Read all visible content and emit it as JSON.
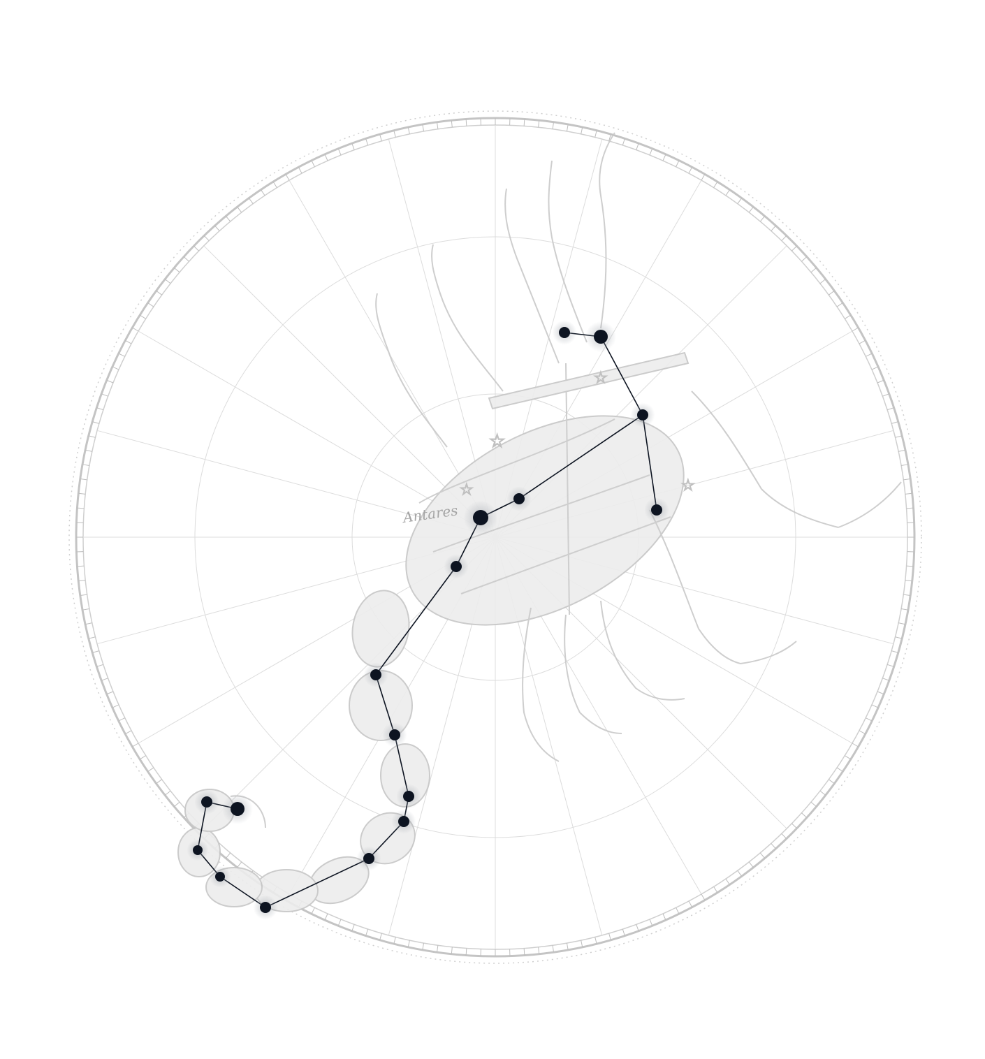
{
  "figure": {
    "illustration_label": "Antares"
  },
  "stars": [
    {
      "id": "claw-a",
      "mag": 2
    },
    {
      "id": "claw-b",
      "mag": 1
    },
    {
      "id": "shoulder",
      "mag": 2
    },
    {
      "id": "right-arm",
      "mag": 2
    },
    {
      "id": "sigma",
      "mag": 2
    },
    {
      "id": "antares",
      "mag": 0
    },
    {
      "id": "tau",
      "mag": 2
    },
    {
      "id": "epsilon",
      "mag": 2
    },
    {
      "id": "mu",
      "mag": 2
    },
    {
      "id": "zeta",
      "mag": 2
    },
    {
      "id": "eta",
      "mag": 2
    },
    {
      "id": "theta",
      "mag": 2
    },
    {
      "id": "iota",
      "mag": 2
    },
    {
      "id": "kappa",
      "mag": 3
    },
    {
      "id": "upsilon",
      "mag": 3
    },
    {
      "id": "lambda",
      "mag": 2
    },
    {
      "id": "shaula",
      "mag": 1
    }
  ],
  "lines": [
    [
      "claw-a",
      "claw-b"
    ],
    [
      "claw-b",
      "shoulder"
    ],
    [
      "shoulder",
      "right-arm"
    ],
    [
      "shoulder",
      "sigma"
    ],
    [
      "sigma",
      "antares"
    ],
    [
      "antares",
      "tau"
    ],
    [
      "tau",
      "epsilon"
    ],
    [
      "epsilon",
      "mu"
    ],
    [
      "mu",
      "zeta"
    ],
    [
      "zeta",
      "eta"
    ],
    [
      "eta",
      "theta"
    ],
    [
      "theta",
      "iota"
    ],
    [
      "iota",
      "kappa"
    ],
    [
      "kappa",
      "upsilon"
    ],
    [
      "upsilon",
      "lambda"
    ],
    [
      "lambda",
      "shaula"
    ]
  ],
  "colors": {
    "star": "#0d1421",
    "line": "#0d1421",
    "illustration": "#c9c9c9",
    "grid": "#dcdcdc"
  }
}
